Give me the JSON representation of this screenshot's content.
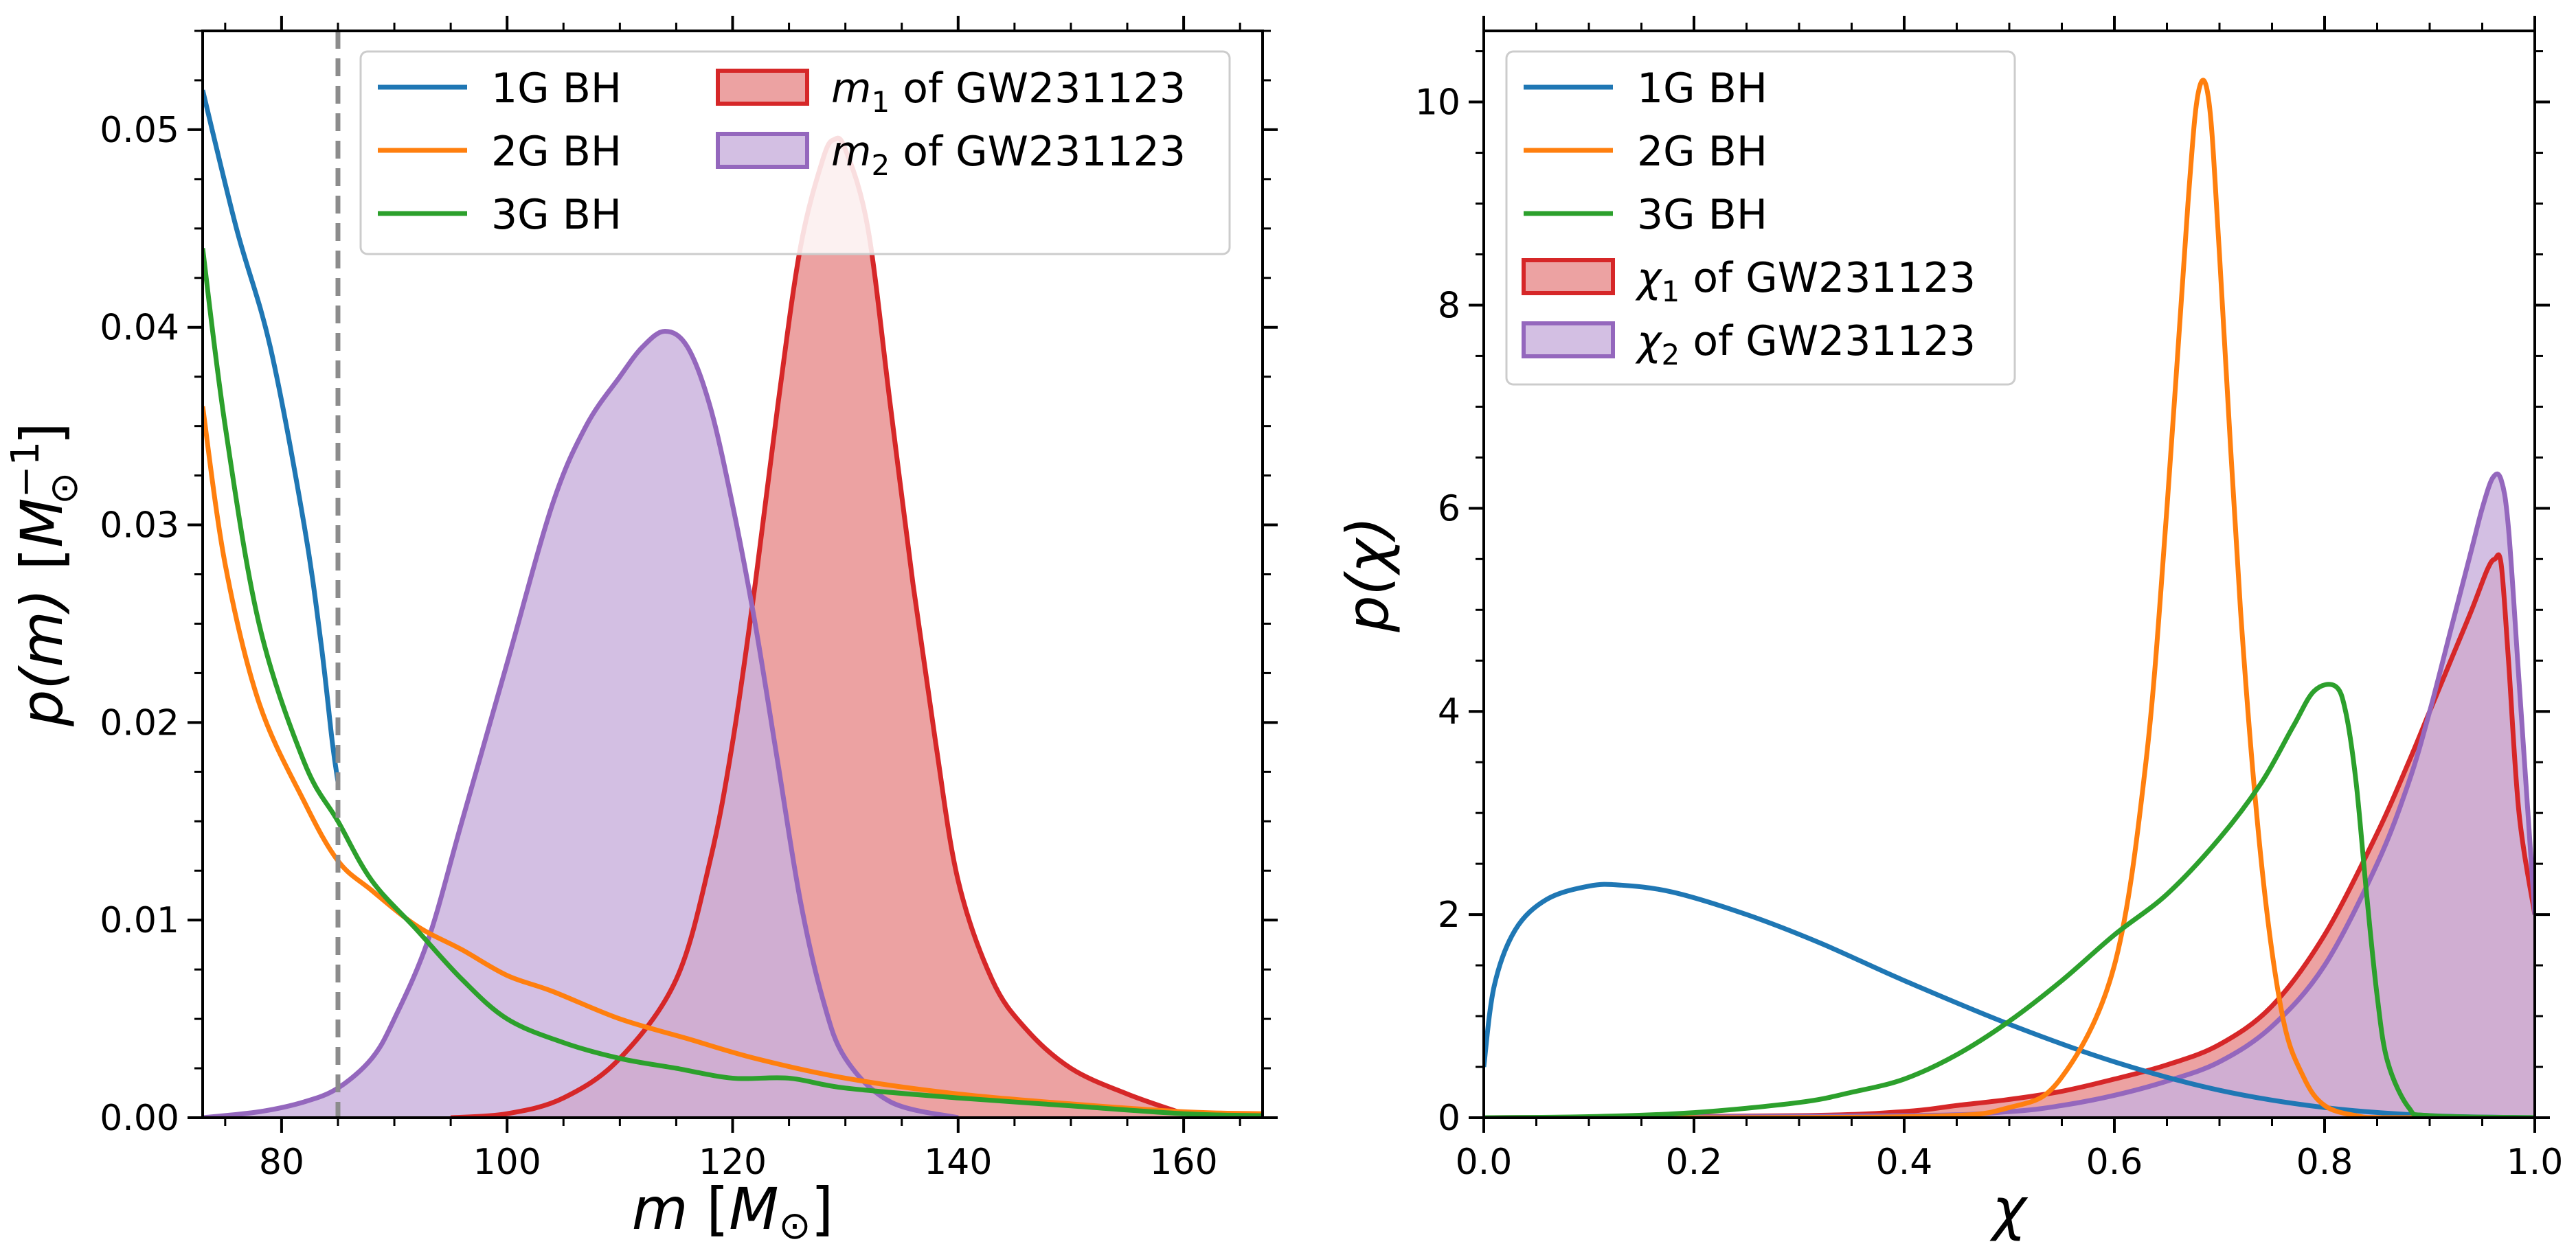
{
  "chart_data": [
    {
      "type": "area",
      "xlabel_var": "m",
      "xlabel_unit": "M",
      "xlabel_unit_sub": "⊙",
      "ylabel_var": "p(m)",
      "ylabel_unit": "M",
      "ylabel_unit_sub": "⊙",
      "ylabel_unit_sup": "−1",
      "xlim": [
        73,
        167
      ],
      "ylim": [
        0,
        0.055
      ],
      "xticks": [
        80,
        100,
        120,
        140,
        160
      ],
      "xtick_labels": [
        "80",
        "100",
        "120",
        "140",
        "160"
      ],
      "yticks": [
        0,
        0.01,
        0.02,
        0.03,
        0.04,
        0.05
      ],
      "ytick_labels": [
        "0.00",
        "0.01",
        "0.02",
        "0.03",
        "0.04",
        "0.05"
      ],
      "vline": {
        "x": 85,
        "color": "#8c8c8c",
        "style": "dashed"
      },
      "legend": {
        "placement": "top-right",
        "columns": 2
      },
      "series": [
        {
          "name": "1G BH",
          "kind": "line",
          "color": "#1f77b4",
          "x": [
            73,
            76,
            79,
            82,
            83.5,
            84.5,
            85
          ],
          "y": [
            0.052,
            0.045,
            0.039,
            0.03,
            0.024,
            0.019,
            0.017
          ]
        },
        {
          "name": "2G BH",
          "kind": "line",
          "color": "#ff7f0e",
          "x": [
            73,
            75,
            78,
            82,
            85,
            88,
            92,
            96,
            100,
            104,
            110,
            116,
            122,
            130,
            140,
            150,
            160,
            167
          ],
          "y": [
            0.036,
            0.028,
            0.021,
            0.016,
            0.013,
            0.0115,
            0.0097,
            0.0085,
            0.0072,
            0.0064,
            0.005,
            0.004,
            0.003,
            0.002,
            0.0012,
            0.0007,
            0.0003,
            0.0002
          ]
        },
        {
          "name": "3G BH",
          "kind": "line",
          "color": "#2ca02c",
          "x": [
            73,
            75,
            78,
            82,
            85,
            88,
            92,
            96,
            100,
            105,
            110,
            115,
            120,
            125,
            130,
            140,
            150,
            160,
            167
          ],
          "y": [
            0.044,
            0.035,
            0.025,
            0.018,
            0.015,
            0.012,
            0.0095,
            0.007,
            0.005,
            0.0038,
            0.003,
            0.0025,
            0.002,
            0.002,
            0.0015,
            0.001,
            0.0006,
            0.0002,
            0.0001
          ]
        },
        {
          "name": "m₁ of GW231123",
          "legend_math": "m",
          "legend_sub": "1",
          "legend_rest": " of GW231123",
          "kind": "area",
          "color": "#d62728",
          "fill": "#e88d8e",
          "x": [
            95,
            100,
            105,
            110,
            115,
            118,
            120,
            122,
            124,
            126,
            128,
            129,
            130,
            132,
            134,
            136,
            138,
            140,
            143,
            146,
            150,
            155,
            160
          ],
          "y": [
            0,
            0.0002,
            0.001,
            0.003,
            0.007,
            0.013,
            0.019,
            0.027,
            0.036,
            0.044,
            0.0485,
            0.0495,
            0.049,
            0.045,
            0.036,
            0.027,
            0.019,
            0.012,
            0.007,
            0.0045,
            0.0025,
            0.0012,
            0.0002
          ]
        },
        {
          "name": "m₂ of GW231123",
          "legend_math": "m",
          "legend_sub": "2",
          "legend_rest": " of GW231123",
          "kind": "area",
          "color": "#9467bd",
          "fill": "#c9b1dd",
          "x": [
            73,
            78,
            82,
            85,
            88,
            90,
            93,
            96,
            100,
            104,
            107,
            110,
            112,
            114,
            116,
            118,
            120,
            122,
            124,
            126,
            128,
            130,
            134,
            140
          ],
          "y": [
            0,
            0.0003,
            0.0008,
            0.0015,
            0.003,
            0.005,
            0.009,
            0.015,
            0.023,
            0.031,
            0.035,
            0.0375,
            0.039,
            0.0398,
            0.039,
            0.036,
            0.031,
            0.025,
            0.018,
            0.011,
            0.006,
            0.003,
            0.0008,
            0
          ]
        }
      ]
    },
    {
      "type": "area",
      "xlabel_var": "χ",
      "ylabel_var": "p(χ)",
      "xlim": [
        0,
        1
      ],
      "ylim": [
        0,
        10.7
      ],
      "xticks": [
        0,
        0.2,
        0.4,
        0.6,
        0.8,
        1.0
      ],
      "xtick_labels": [
        "0.0",
        "0.2",
        "0.4",
        "0.6",
        "0.8",
        "1.0"
      ],
      "yticks": [
        0,
        2,
        4,
        6,
        8,
        10
      ],
      "ytick_labels": [
        "0",
        "2",
        "4",
        "6",
        "8",
        "10"
      ],
      "legend": {
        "placement": "top-left",
        "columns": 1
      },
      "series": [
        {
          "name": "1G BH",
          "kind": "line",
          "color": "#1f77b4",
          "x": [
            0,
            0.01,
            0.03,
            0.06,
            0.1,
            0.13,
            0.18,
            0.25,
            0.32,
            0.4,
            0.5,
            0.6,
            0.7,
            0.8,
            0.9,
            1.0
          ],
          "y": [
            0.5,
            1.3,
            1.85,
            2.15,
            2.28,
            2.29,
            2.22,
            2.0,
            1.72,
            1.35,
            0.92,
            0.55,
            0.27,
            0.1,
            0.02,
            0
          ]
        },
        {
          "name": "2G BH",
          "kind": "line",
          "color": "#ff7f0e",
          "x": [
            0,
            0.4,
            0.5,
            0.55,
            0.6,
            0.63,
            0.65,
            0.67,
            0.68,
            0.69,
            0.7,
            0.72,
            0.74,
            0.76,
            0.78,
            0.8,
            0.83,
            0.86,
            1.0
          ],
          "y": [
            0,
            0.01,
            0.1,
            0.4,
            1.5,
            3.5,
            6.0,
            9.0,
            10.1,
            10.0,
            8.5,
            5.0,
            2.5,
            1.0,
            0.4,
            0.12,
            0.02,
            0,
            0
          ]
        },
        {
          "name": "3G BH",
          "kind": "line",
          "color": "#2ca02c",
          "x": [
            0,
            0.1,
            0.2,
            0.3,
            0.35,
            0.4,
            0.45,
            0.5,
            0.55,
            0.6,
            0.65,
            0.7,
            0.74,
            0.77,
            0.79,
            0.81,
            0.82,
            0.83,
            0.84,
            0.85,
            0.86,
            0.88,
            0.9,
            1.0
          ],
          "y": [
            0,
            0.01,
            0.05,
            0.15,
            0.25,
            0.38,
            0.62,
            0.95,
            1.35,
            1.8,
            2.2,
            2.75,
            3.3,
            3.85,
            4.2,
            4.25,
            4.0,
            3.3,
            2.2,
            1.2,
            0.55,
            0.1,
            0.02,
            0
          ]
        },
        {
          "name": "χ₁ of GW231123",
          "legend_math": "χ",
          "legend_sub": "1",
          "legend_rest": " of GW231123",
          "kind": "area",
          "color": "#d62728",
          "fill": "#e88d8e",
          "x": [
            0,
            0.3,
            0.4,
            0.45,
            0.5,
            0.55,
            0.6,
            0.65,
            0.7,
            0.75,
            0.8,
            0.85,
            0.88,
            0.9,
            0.92,
            0.94,
            0.955,
            0.962,
            0.968,
            0.975,
            0.985,
            1.0
          ],
          "y": [
            0,
            0.02,
            0.06,
            0.12,
            0.18,
            0.26,
            0.38,
            0.52,
            0.72,
            1.1,
            1.8,
            2.8,
            3.5,
            4.0,
            4.5,
            5.0,
            5.4,
            5.5,
            5.45,
            4.5,
            3.0,
            2.0
          ]
        },
        {
          "name": "χ₂ of GW231123",
          "legend_math": "χ",
          "legend_sub": "2",
          "legend_rest": " of GW231123",
          "kind": "area",
          "color": "#9467bd",
          "fill": "#c9b1dd",
          "x": [
            0,
            0.4,
            0.5,
            0.55,
            0.6,
            0.65,
            0.7,
            0.75,
            0.8,
            0.85,
            0.88,
            0.9,
            0.92,
            0.94,
            0.95,
            0.96,
            0.968,
            0.975,
            0.985,
            1.0
          ],
          "y": [
            0,
            0.02,
            0.06,
            0.12,
            0.22,
            0.36,
            0.55,
            0.9,
            1.5,
            2.5,
            3.3,
            4.0,
            4.8,
            5.6,
            6.0,
            6.3,
            6.28,
            5.8,
            4.3,
            2.0
          ]
        }
      ]
    }
  ]
}
